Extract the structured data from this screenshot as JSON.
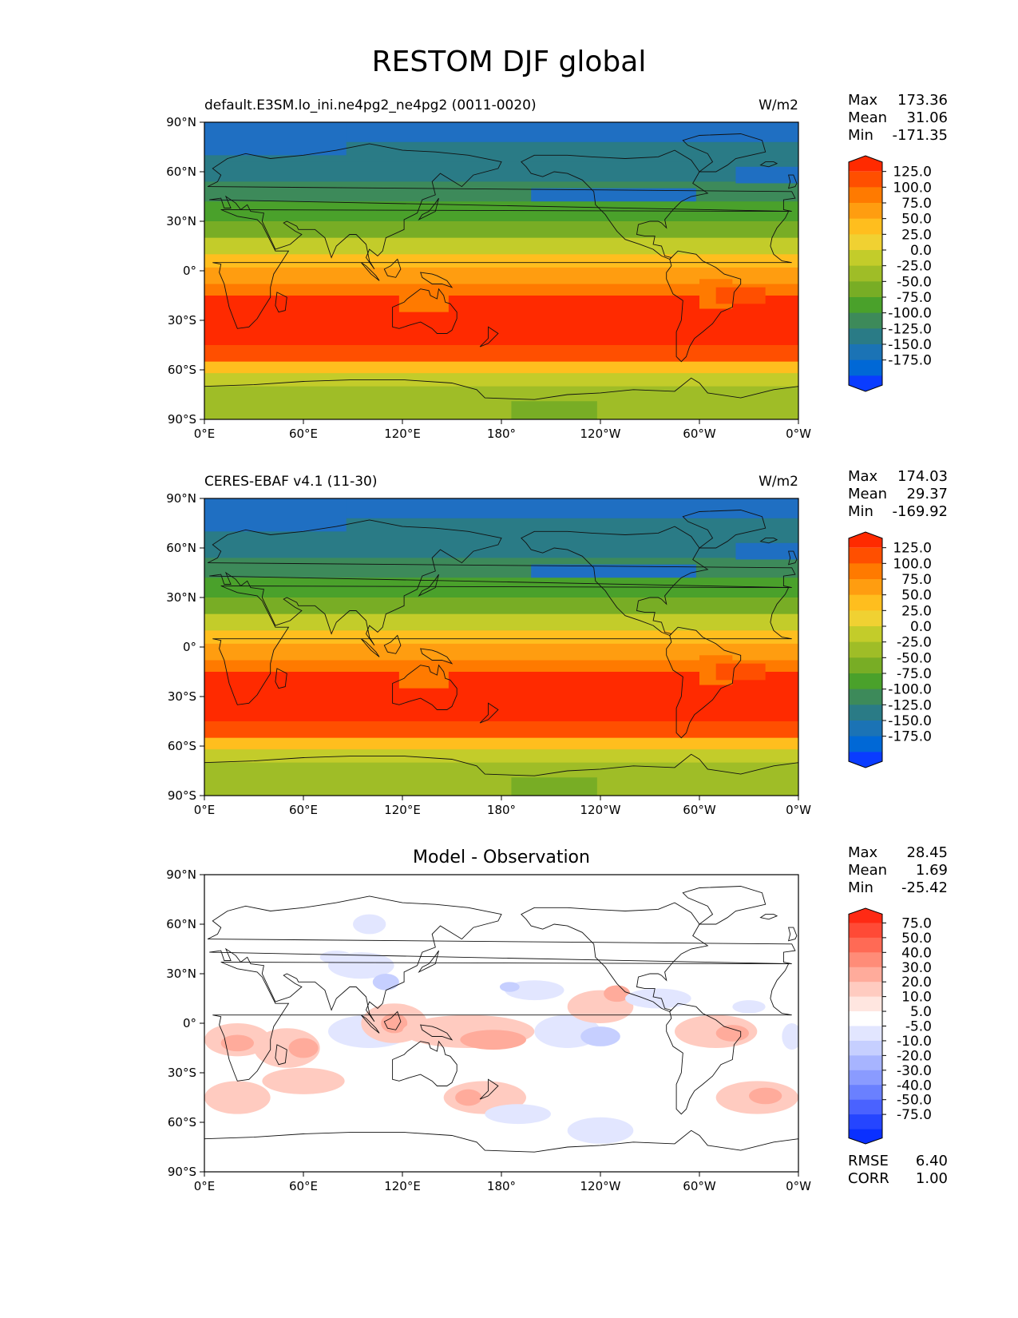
{
  "figure": {
    "title": "RESTOM DJF global"
  },
  "axes": {
    "lat_ticks": [
      "90°N",
      "60°N",
      "30°N",
      "0°",
      "30°S",
      "60°S",
      "90°S"
    ],
    "lon_ticks": [
      "0°E",
      "60°E",
      "120°E",
      "180°",
      "120°W",
      "60°W",
      "0°W"
    ]
  },
  "panels": [
    {
      "title_left": "default.E3SM.lo_ini.ne4pg2_ne4pg2 (0011-0020)",
      "title_right": "W/m2",
      "title_center": "",
      "stats": [
        {
          "label": "Max",
          "value": "173.36"
        },
        {
          "label": "Mean",
          "value": "31.06"
        },
        {
          "label": "Min",
          "value": "-171.35"
        }
      ],
      "colorbar_levels": [
        "125.0",
        "100.0",
        "75.0",
        "50.0",
        "25.0",
        "0.0",
        "-25.0",
        "-50.0",
        "-75.0",
        "-100.0",
        "-125.0",
        "-150.0",
        "-175.0"
      ],
      "colorbar_colors": [
        "#ff2a00",
        "#ff4f00",
        "#ff7a00",
        "#ff9d10",
        "#ffbe1e",
        "#f0d132",
        "#c3cc2a",
        "#9fbd27",
        "#78ad25",
        "#4aa12b",
        "#3d8a5a",
        "#2a7b86",
        "#1b73b5",
        "#0068d6",
        "#0a3cff"
      ],
      "field_colors": {
        "band_lat_edges": [
          90,
          78,
          66,
          54,
          42,
          30,
          20,
          10,
          2,
          -8,
          -15,
          -45,
          -55,
          -62,
          -70,
          -90
        ],
        "band_colors": [
          "#1f6fc2",
          "#2a7b86",
          "#2a7b86",
          "#3d8a5a",
          "#4aa12b",
          "#78ad25",
          "#c3cc2a",
          "#ffbe1e",
          "#ff9d10",
          "#ff7a00",
          "#ff2a00",
          "#ff4f00",
          "#ffbe1e",
          "#c3cc2a",
          "#9fbd27"
        ]
      },
      "extra_stats": []
    },
    {
      "title_left": "CERES-EBAF v4.1 (11-30)",
      "title_right": "W/m2",
      "title_center": "",
      "stats": [
        {
          "label": "Max",
          "value": "174.03"
        },
        {
          "label": "Mean",
          "value": "29.37"
        },
        {
          "label": "Min",
          "value": "-169.92"
        }
      ],
      "colorbar_levels": [
        "125.0",
        "100.0",
        "75.0",
        "50.0",
        "25.0",
        "0.0",
        "-25.0",
        "-50.0",
        "-75.0",
        "-100.0",
        "-125.0",
        "-150.0",
        "-175.0"
      ],
      "colorbar_colors": [
        "#ff2a00",
        "#ff4f00",
        "#ff7a00",
        "#ff9d10",
        "#ffbe1e",
        "#f0d132",
        "#c3cc2a",
        "#9fbd27",
        "#78ad25",
        "#4aa12b",
        "#3d8a5a",
        "#2a7b86",
        "#1b73b5",
        "#0068d6",
        "#0a3cff"
      ],
      "field_colors": {
        "band_lat_edges": [
          90,
          78,
          66,
          54,
          42,
          30,
          20,
          10,
          2,
          -8,
          -15,
          -45,
          -55,
          -62,
          -70,
          -90
        ],
        "band_colors": [
          "#1f6fc2",
          "#2a7b86",
          "#2a7b86",
          "#3d8a5a",
          "#4aa12b",
          "#78ad25",
          "#c3cc2a",
          "#ffbe1e",
          "#ff9d10",
          "#ff7a00",
          "#ff2a00",
          "#ff4f00",
          "#ffbe1e",
          "#c3cc2a",
          "#9fbd27"
        ]
      },
      "extra_stats": []
    },
    {
      "title_left": "",
      "title_right": "",
      "title_center": "Model - Observation",
      "stats": [
        {
          "label": "Max",
          "value": "28.45"
        },
        {
          "label": "Mean",
          "value": "1.69"
        },
        {
          "label": "Min",
          "value": "-25.42"
        }
      ],
      "colorbar_levels": [
        "75.0",
        "50.0",
        "40.0",
        "30.0",
        "20.0",
        "10.0",
        "5.0",
        "-5.0",
        "-10.0",
        "-20.0",
        "-30.0",
        "-40.0",
        "-50.0",
        "-75.0"
      ],
      "colorbar_colors": [
        "#ff2a14",
        "#ff4a36",
        "#ff6a55",
        "#ff8c78",
        "#ffab9b",
        "#ffcbc0",
        "#ffe6e0",
        "#ffffff",
        "#e2e6ff",
        "#c6cfff",
        "#a7b4ff",
        "#8a9bff",
        "#6a80ff",
        "#4a62ff",
        "#2545ff",
        "#0a30ff"
      ],
      "field_colors": {
        "band_lat_edges": [],
        "band_colors": []
      },
      "extra_stats": [
        {
          "label": "RMSE",
          "value": "6.40"
        },
        {
          "label": "CORR",
          "value": "1.00"
        }
      ]
    }
  ]
}
